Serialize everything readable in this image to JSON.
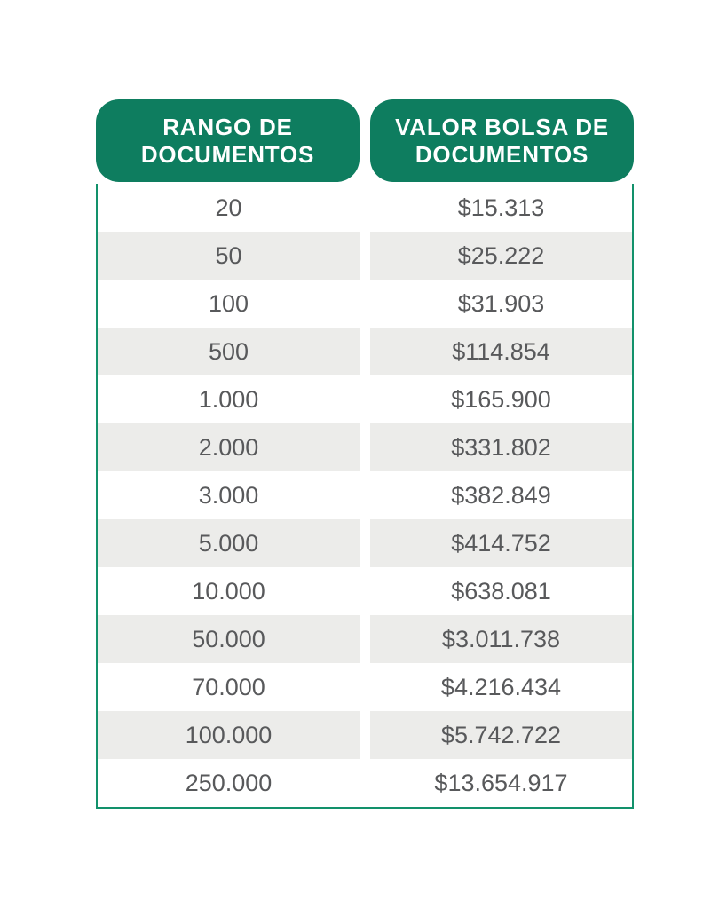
{
  "colors": {
    "green": "#0e7d5f",
    "border": "#12916b",
    "stripe": "#ececea",
    "text": "#58595b"
  },
  "table": {
    "header_left": {
      "line1": "RANGO DE",
      "line2": "DOCUMENTOS"
    },
    "header_right": {
      "line1": "VALOR BOLSA DE",
      "line2": "DOCUMENTOS"
    },
    "rows": [
      {
        "range": "20",
        "value": "$15.313"
      },
      {
        "range": "50",
        "value": "$25.222"
      },
      {
        "range": "100",
        "value": "$31.903"
      },
      {
        "range": "500",
        "value": "$114.854"
      },
      {
        "range": "1.000",
        "value": "$165.900"
      },
      {
        "range": "2.000",
        "value": "$331.802"
      },
      {
        "range": "3.000",
        "value": "$382.849"
      },
      {
        "range": "5.000",
        "value": "$414.752"
      },
      {
        "range": "10.000",
        "value": "$638.081"
      },
      {
        "range": "50.000",
        "value": "$3.011.738"
      },
      {
        "range": "70.000",
        "value": "$4.216.434"
      },
      {
        "range": "100.000",
        "value": "$5.742.722"
      },
      {
        "range": "250.000",
        "value": "$13.654.917"
      }
    ]
  },
  "chart_data": {
    "type": "table",
    "title": "",
    "columns": [
      "RANGO DE DOCUMENTOS",
      "VALOR BOLSA DE DOCUMENTOS"
    ],
    "rows": [
      [
        "20",
        "$15.313"
      ],
      [
        "50",
        "$25.222"
      ],
      [
        "100",
        "$31.903"
      ],
      [
        "500",
        "$114.854"
      ],
      [
        "1.000",
        "$165.900"
      ],
      [
        "2.000",
        "$331.802"
      ],
      [
        "3.000",
        "$382.849"
      ],
      [
        "5.000",
        "$414.752"
      ],
      [
        "10.000",
        "$638.081"
      ],
      [
        "50.000",
        "$3.011.738"
      ],
      [
        "70.000",
        "$4.216.434"
      ],
      [
        "100.000",
        "$5.742.722"
      ],
      [
        "250.000",
        "$13.654.917"
      ]
    ],
    "layout_hints": {
      "striped_rows": true,
      "header_style": "green-rounded-pills",
      "first_data_row_background": "white"
    }
  }
}
